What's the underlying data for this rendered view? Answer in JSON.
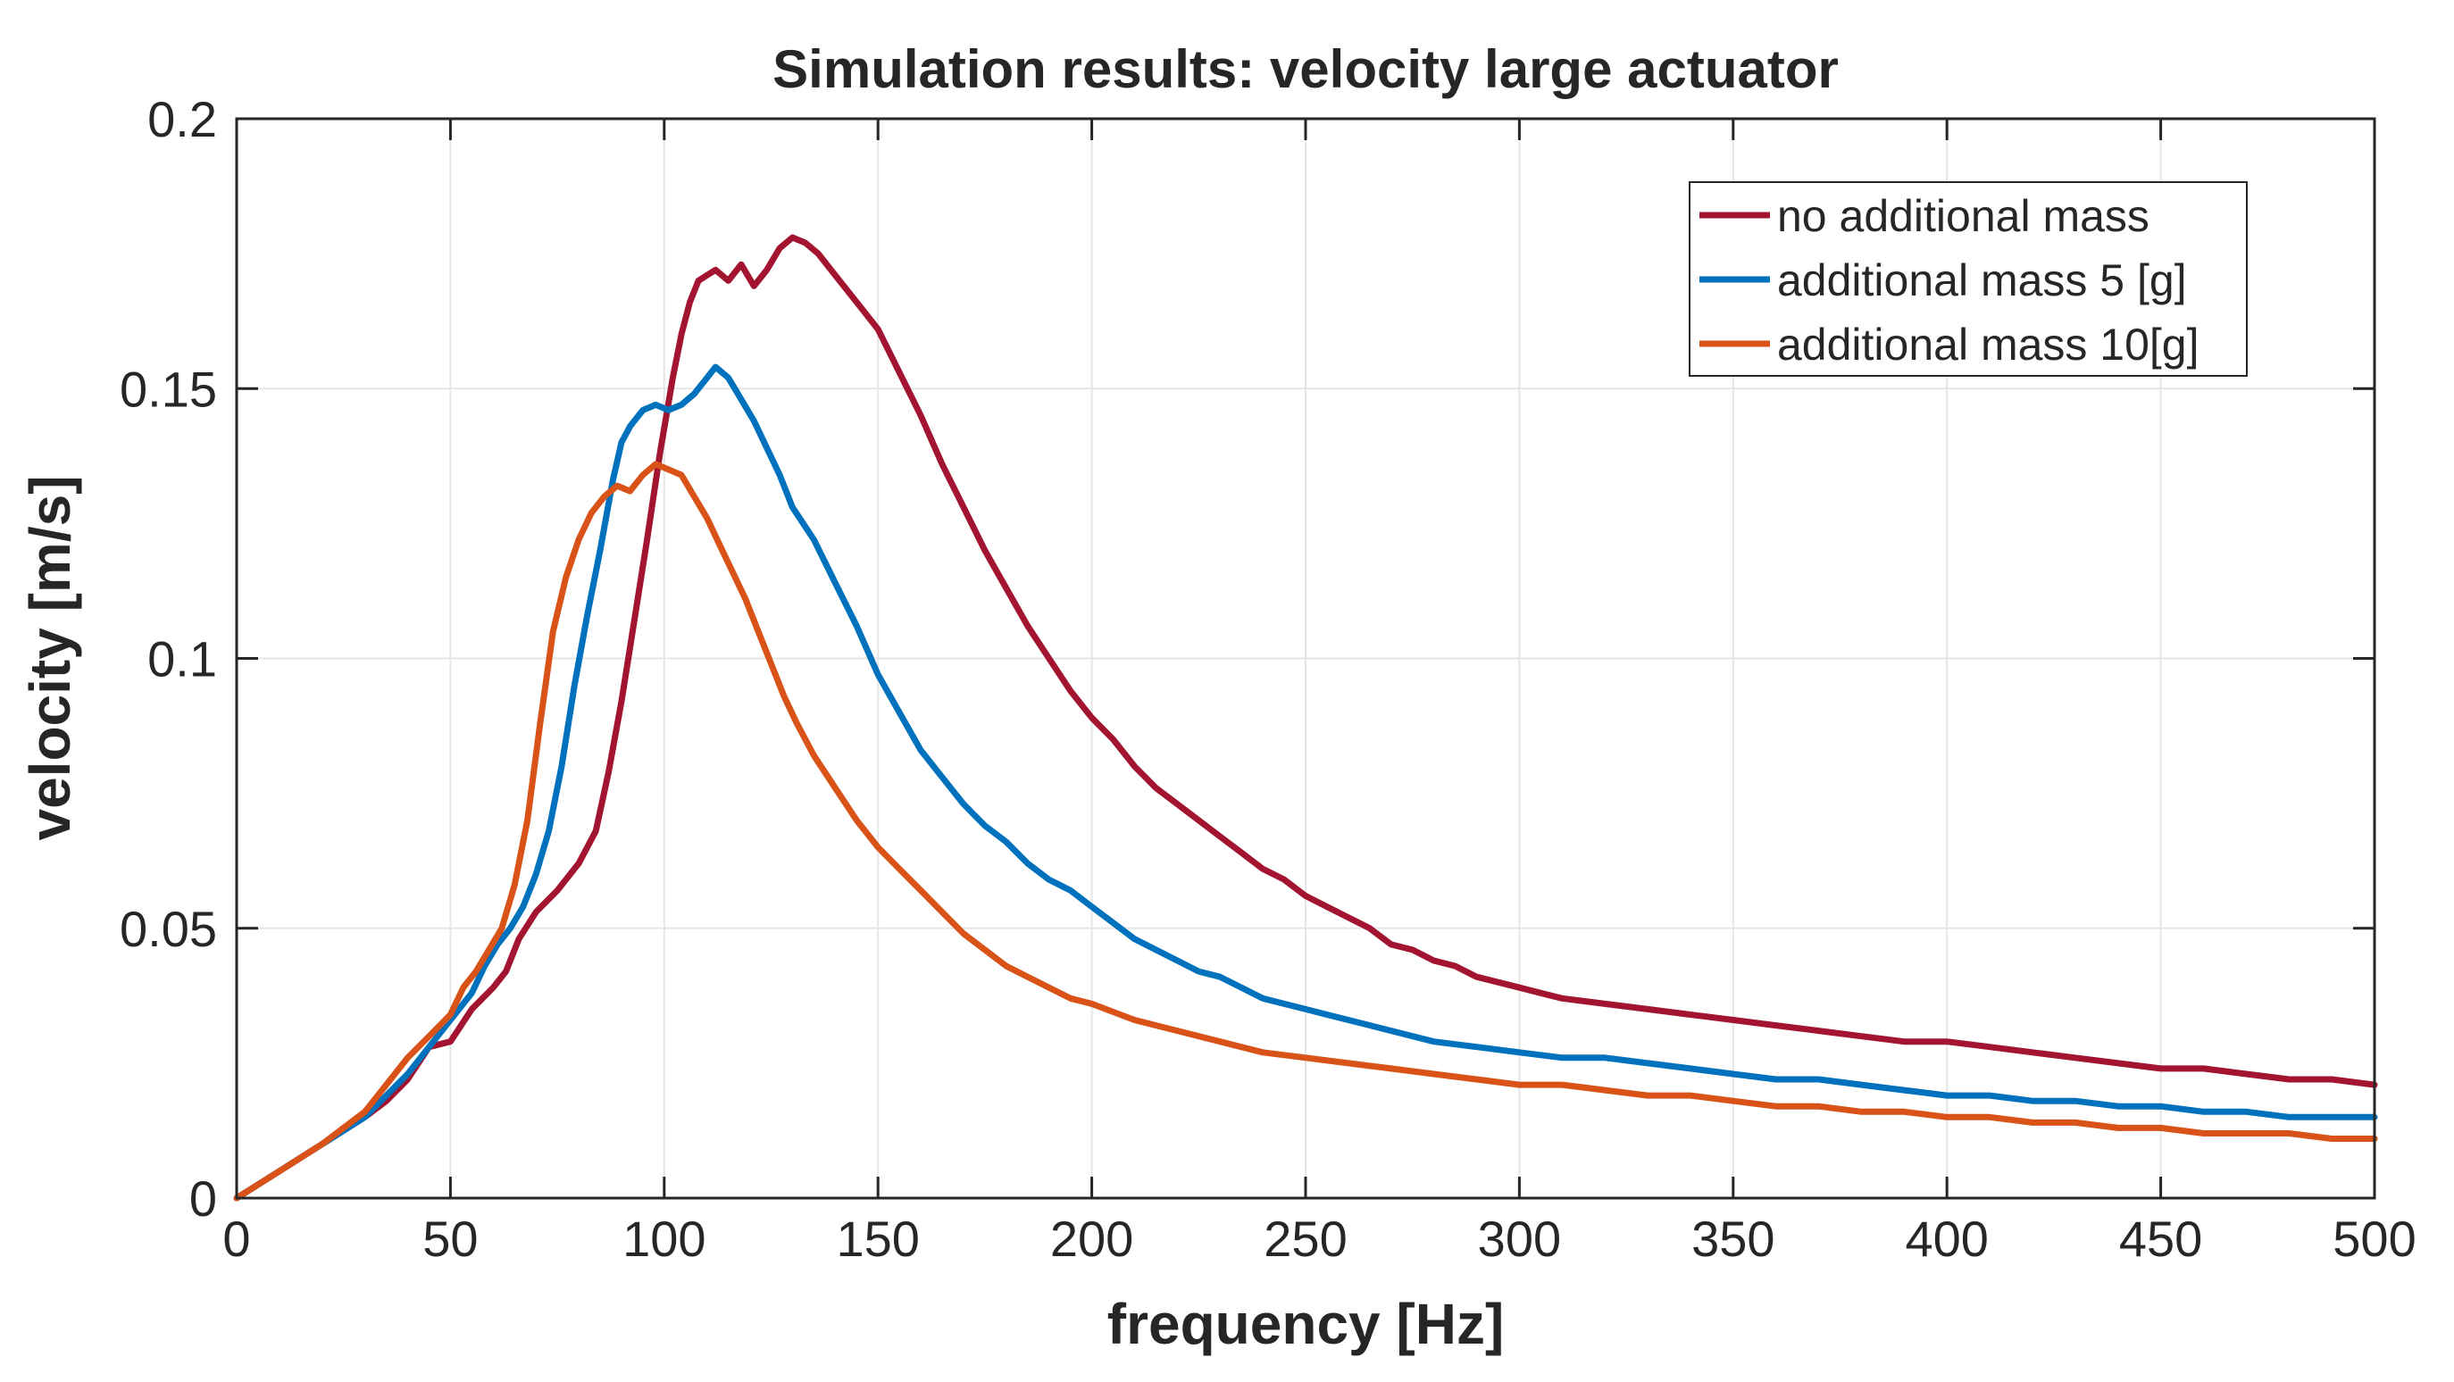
{
  "chart_data": {
    "type": "line",
    "title": "Simulation results: velocity large actuator",
    "xlabel": "frequency [Hz]",
    "ylabel": "velocity [m/s]",
    "xlim": [
      0,
      500
    ],
    "ylim": [
      0,
      0.2
    ],
    "grid": true,
    "legend_position": "top-right",
    "x_ticks": [
      0,
      50,
      100,
      150,
      200,
      250,
      300,
      350,
      400,
      450,
      500
    ],
    "x_tick_labels": [
      "0",
      "50",
      "100",
      "150",
      "200",
      "250",
      "300",
      "350",
      "400",
      "450",
      "500"
    ],
    "y_ticks": [
      0,
      0.05,
      0.1,
      0.15,
      0.2
    ],
    "y_tick_labels": [
      "0",
      "0.05",
      "0.1",
      "0.15",
      "0.2"
    ],
    "series": [
      {
        "name": "no additional mass",
        "color": "#A2142F",
        "points": [
          [
            0,
            0
          ],
          [
            10,
            0.005
          ],
          [
            20,
            0.01
          ],
          [
            30,
            0.015
          ],
          [
            35,
            0.018
          ],
          [
            40,
            0.022
          ],
          [
            45,
            0.028
          ],
          [
            50,
            0.029
          ],
          [
            55,
            0.035
          ],
          [
            60,
            0.039
          ],
          [
            63,
            0.042
          ],
          [
            66,
            0.048
          ],
          [
            70,
            0.053
          ],
          [
            75,
            0.057
          ],
          [
            80,
            0.062
          ],
          [
            84,
            0.068
          ],
          [
            87,
            0.079
          ],
          [
            90,
            0.092
          ],
          [
            93,
            0.107
          ],
          [
            96,
            0.122
          ],
          [
            99,
            0.138
          ],
          [
            102,
            0.152
          ],
          [
            104,
            0.16
          ],
          [
            106,
            0.166
          ],
          [
            108,
            0.17
          ],
          [
            110,
            0.171
          ],
          [
            112,
            0.172
          ],
          [
            115,
            0.17
          ],
          [
            118,
            0.173
          ],
          [
            121,
            0.169
          ],
          [
            124,
            0.172
          ],
          [
            127,
            0.176
          ],
          [
            130,
            0.178
          ],
          [
            133,
            0.177
          ],
          [
            136,
            0.175
          ],
          [
            140,
            0.171
          ],
          [
            145,
            0.166
          ],
          [
            150,
            0.161
          ],
          [
            155,
            0.153
          ],
          [
            160,
            0.145
          ],
          [
            165,
            0.136
          ],
          [
            170,
            0.128
          ],
          [
            175,
            0.12
          ],
          [
            180,
            0.113
          ],
          [
            185,
            0.106
          ],
          [
            190,
            0.1
          ],
          [
            195,
            0.094
          ],
          [
            200,
            0.089
          ],
          [
            205,
            0.085
          ],
          [
            210,
            0.08
          ],
          [
            215,
            0.076
          ],
          [
            220,
            0.073
          ],
          [
            225,
            0.07
          ],
          [
            230,
            0.067
          ],
          [
            235,
            0.064
          ],
          [
            240,
            0.061
          ],
          [
            245,
            0.059
          ],
          [
            250,
            0.056
          ],
          [
            255,
            0.054
          ],
          [
            260,
            0.052
          ],
          [
            265,
            0.05
          ],
          [
            270,
            0.047
          ],
          [
            275,
            0.046
          ],
          [
            280,
            0.044
          ],
          [
            285,
            0.043
          ],
          [
            290,
            0.041
          ],
          [
            295,
            0.04
          ],
          [
            300,
            0.039
          ],
          [
            305,
            0.038
          ],
          [
            310,
            0.037
          ],
          [
            320,
            0.036
          ],
          [
            330,
            0.035
          ],
          [
            340,
            0.034
          ],
          [
            350,
            0.033
          ],
          [
            360,
            0.032
          ],
          [
            370,
            0.031
          ],
          [
            380,
            0.03
          ],
          [
            390,
            0.029
          ],
          [
            400,
            0.029
          ],
          [
            410,
            0.028
          ],
          [
            420,
            0.027
          ],
          [
            430,
            0.026
          ],
          [
            440,
            0.025
          ],
          [
            450,
            0.024
          ],
          [
            460,
            0.024
          ],
          [
            470,
            0.023
          ],
          [
            480,
            0.022
          ],
          [
            490,
            0.022
          ],
          [
            500,
            0.021
          ]
        ]
      },
      {
        "name": "additional mass 5 [g]",
        "color": "#0072BD",
        "points": [
          [
            0,
            0
          ],
          [
            10,
            0.005
          ],
          [
            20,
            0.01
          ],
          [
            30,
            0.015
          ],
          [
            35,
            0.019
          ],
          [
            40,
            0.023
          ],
          [
            45,
            0.028
          ],
          [
            50,
            0.033
          ],
          [
            55,
            0.038
          ],
          [
            58,
            0.043
          ],
          [
            61,
            0.047
          ],
          [
            64,
            0.05
          ],
          [
            67,
            0.054
          ],
          [
            70,
            0.06
          ],
          [
            73,
            0.068
          ],
          [
            76,
            0.08
          ],
          [
            79,
            0.095
          ],
          [
            82,
            0.108
          ],
          [
            85,
            0.12
          ],
          [
            88,
            0.133
          ],
          [
            90,
            0.14
          ],
          [
            92,
            0.143
          ],
          [
            95,
            0.146
          ],
          [
            98,
            0.147
          ],
          [
            101,
            0.146
          ],
          [
            104,
            0.147
          ],
          [
            107,
            0.149
          ],
          [
            110,
            0.152
          ],
          [
            112,
            0.154
          ],
          [
            115,
            0.152
          ],
          [
            118,
            0.148
          ],
          [
            121,
            0.144
          ],
          [
            124,
            0.139
          ],
          [
            127,
            0.134
          ],
          [
            130,
            0.128
          ],
          [
            135,
            0.122
          ],
          [
            140,
            0.114
          ],
          [
            145,
            0.106
          ],
          [
            150,
            0.097
          ],
          [
            155,
            0.09
          ],
          [
            160,
            0.083
          ],
          [
            165,
            0.078
          ],
          [
            170,
            0.073
          ],
          [
            175,
            0.069
          ],
          [
            180,
            0.066
          ],
          [
            185,
            0.062
          ],
          [
            190,
            0.059
          ],
          [
            195,
            0.057
          ],
          [
            200,
            0.054
          ],
          [
            205,
            0.051
          ],
          [
            210,
            0.048
          ],
          [
            215,
            0.046
          ],
          [
            220,
            0.044
          ],
          [
            225,
            0.042
          ],
          [
            230,
            0.041
          ],
          [
            235,
            0.039
          ],
          [
            240,
            0.037
          ],
          [
            245,
            0.036
          ],
          [
            250,
            0.035
          ],
          [
            255,
            0.034
          ],
          [
            260,
            0.033
          ],
          [
            270,
            0.031
          ],
          [
            280,
            0.029
          ],
          [
            290,
            0.028
          ],
          [
            300,
            0.027
          ],
          [
            310,
            0.026
          ],
          [
            320,
            0.026
          ],
          [
            330,
            0.025
          ],
          [
            340,
            0.024
          ],
          [
            350,
            0.023
          ],
          [
            360,
            0.022
          ],
          [
            370,
            0.022
          ],
          [
            380,
            0.021
          ],
          [
            390,
            0.02
          ],
          [
            400,
            0.019
          ],
          [
            410,
            0.019
          ],
          [
            420,
            0.018
          ],
          [
            430,
            0.018
          ],
          [
            440,
            0.017
          ],
          [
            450,
            0.017
          ],
          [
            460,
            0.016
          ],
          [
            470,
            0.016
          ],
          [
            480,
            0.015
          ],
          [
            490,
            0.015
          ],
          [
            500,
            0.015
          ]
        ]
      },
      {
        "name": "additional mass 10[g]",
        "color": "#D95319",
        "points": [
          [
            0,
            0
          ],
          [
            10,
            0.005
          ],
          [
            20,
            0.01
          ],
          [
            30,
            0.016
          ],
          [
            35,
            0.021
          ],
          [
            40,
            0.026
          ],
          [
            45,
            0.03
          ],
          [
            50,
            0.034
          ],
          [
            53,
            0.039
          ],
          [
            56,
            0.042
          ],
          [
            59,
            0.046
          ],
          [
            62,
            0.05
          ],
          [
            65,
            0.058
          ],
          [
            68,
            0.07
          ],
          [
            71,
            0.088
          ],
          [
            74,
            0.105
          ],
          [
            77,
            0.115
          ],
          [
            80,
            0.122
          ],
          [
            83,
            0.127
          ],
          [
            86,
            0.13
          ],
          [
            89,
            0.132
          ],
          [
            92,
            0.131
          ],
          [
            95,
            0.134
          ],
          [
            98,
            0.136
          ],
          [
            101,
            0.135
          ],
          [
            104,
            0.134
          ],
          [
            107,
            0.13
          ],
          [
            110,
            0.126
          ],
          [
            113,
            0.121
          ],
          [
            116,
            0.116
          ],
          [
            119,
            0.111
          ],
          [
            122,
            0.105
          ],
          [
            125,
            0.099
          ],
          [
            128,
            0.093
          ],
          [
            131,
            0.088
          ],
          [
            135,
            0.082
          ],
          [
            140,
            0.076
          ],
          [
            145,
            0.07
          ],
          [
            150,
            0.065
          ],
          [
            155,
            0.061
          ],
          [
            160,
            0.057
          ],
          [
            165,
            0.053
          ],
          [
            170,
            0.049
          ],
          [
            175,
            0.046
          ],
          [
            180,
            0.043
          ],
          [
            185,
            0.041
          ],
          [
            190,
            0.039
          ],
          [
            195,
            0.037
          ],
          [
            200,
            0.036
          ],
          [
            210,
            0.033
          ],
          [
            220,
            0.031
          ],
          [
            230,
            0.029
          ],
          [
            240,
            0.027
          ],
          [
            250,
            0.026
          ],
          [
            260,
            0.025
          ],
          [
            270,
            0.024
          ],
          [
            280,
            0.023
          ],
          [
            290,
            0.022
          ],
          [
            300,
            0.021
          ],
          [
            310,
            0.021
          ],
          [
            320,
            0.02
          ],
          [
            330,
            0.019
          ],
          [
            340,
            0.019
          ],
          [
            350,
            0.018
          ],
          [
            360,
            0.017
          ],
          [
            370,
            0.017
          ],
          [
            380,
            0.016
          ],
          [
            390,
            0.016
          ],
          [
            400,
            0.015
          ],
          [
            410,
            0.015
          ],
          [
            420,
            0.014
          ],
          [
            430,
            0.014
          ],
          [
            440,
            0.013
          ],
          [
            450,
            0.013
          ],
          [
            460,
            0.012
          ],
          [
            470,
            0.012
          ],
          [
            480,
            0.012
          ],
          [
            490,
            0.011
          ],
          [
            500,
            0.011
          ]
        ]
      }
    ]
  }
}
